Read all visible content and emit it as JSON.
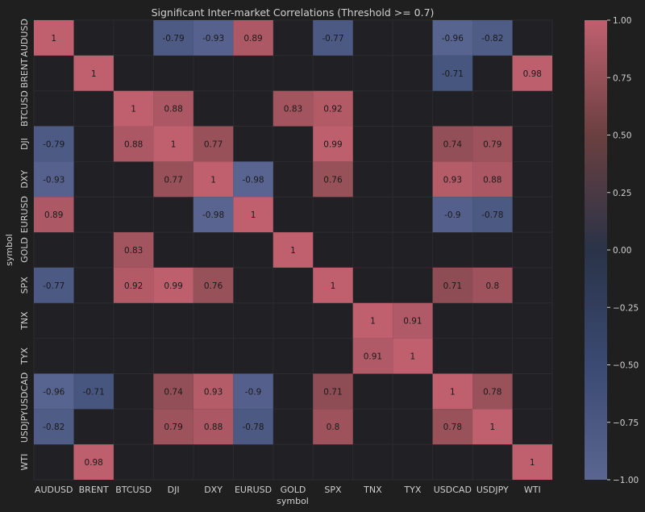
{
  "chart_data": {
    "type": "heatmap",
    "title": "Significant Inter-market Correlations (Threshold >= 0.7)",
    "xlabel": "symbol",
    "ylabel": "symbol",
    "symbols": [
      "AUDUSD",
      "BRENT",
      "BTCUSD",
      "DJI",
      "DXY",
      "EURUSD",
      "GOLD",
      "SPX",
      "TNX",
      "TYX",
      "USDCAD",
      "USDJPY",
      "WTI"
    ],
    "matrix": [
      [
        1,
        null,
        null,
        -0.79,
        -0.93,
        0.89,
        null,
        -0.77,
        null,
        null,
        -0.96,
        -0.82,
        null
      ],
      [
        null,
        1,
        null,
        null,
        null,
        null,
        null,
        null,
        null,
        null,
        -0.71,
        null,
        0.98
      ],
      [
        null,
        null,
        1,
        0.88,
        null,
        null,
        0.83,
        0.92,
        null,
        null,
        null,
        null,
        null
      ],
      [
        -0.79,
        null,
        0.88,
        1,
        0.77,
        null,
        null,
        0.99,
        null,
        null,
        0.74,
        0.79,
        null
      ],
      [
        -0.93,
        null,
        null,
        0.77,
        1,
        -0.98,
        null,
        0.76,
        null,
        null,
        0.93,
        0.88,
        null
      ],
      [
        0.89,
        null,
        null,
        null,
        -0.98,
        1,
        null,
        null,
        null,
        null,
        -0.9,
        -0.78,
        null
      ],
      [
        null,
        null,
        0.83,
        null,
        null,
        null,
        1,
        null,
        null,
        null,
        null,
        null,
        null
      ],
      [
        -0.77,
        null,
        0.92,
        0.99,
        0.76,
        null,
        null,
        1,
        null,
        null,
        0.71,
        0.8,
        null
      ],
      [
        null,
        null,
        null,
        null,
        null,
        null,
        null,
        null,
        1,
        0.91,
        null,
        null,
        null
      ],
      [
        null,
        null,
        null,
        null,
        null,
        null,
        null,
        null,
        0.91,
        1,
        null,
        null,
        null
      ],
      [
        -0.96,
        -0.71,
        null,
        0.74,
        0.93,
        -0.9,
        null,
        0.71,
        null,
        null,
        1,
        0.78,
        null
      ],
      [
        -0.82,
        null,
        null,
        0.79,
        0.88,
        -0.78,
        null,
        0.8,
        null,
        null,
        0.78,
        1,
        null
      ],
      [
        null,
        0.98,
        null,
        null,
        null,
        null,
        null,
        null,
        null,
        null,
        null,
        null,
        1
      ]
    ],
    "colorbar": {
      "range": [
        -1,
        1
      ],
      "ticks": [
        -1.0,
        -0.75,
        -0.5,
        -0.25,
        0.0,
        0.25,
        0.5,
        0.75,
        1.0
      ],
      "tick_labels": [
        "−1.00",
        "−0.75",
        "−0.50",
        "−0.25",
        "0.00",
        "0.25",
        "0.50",
        "0.75",
        "1.00"
      ]
    },
    "grid": true,
    "colors": {
      "background": "#1f1f1f",
      "plot_background": "#202025",
      "negative": "#5a6691",
      "neutral": "#2a3348",
      "positive": "#c0606f",
      "text": "#d0d0d0",
      "cell_text": "#1a1a1a"
    }
  }
}
